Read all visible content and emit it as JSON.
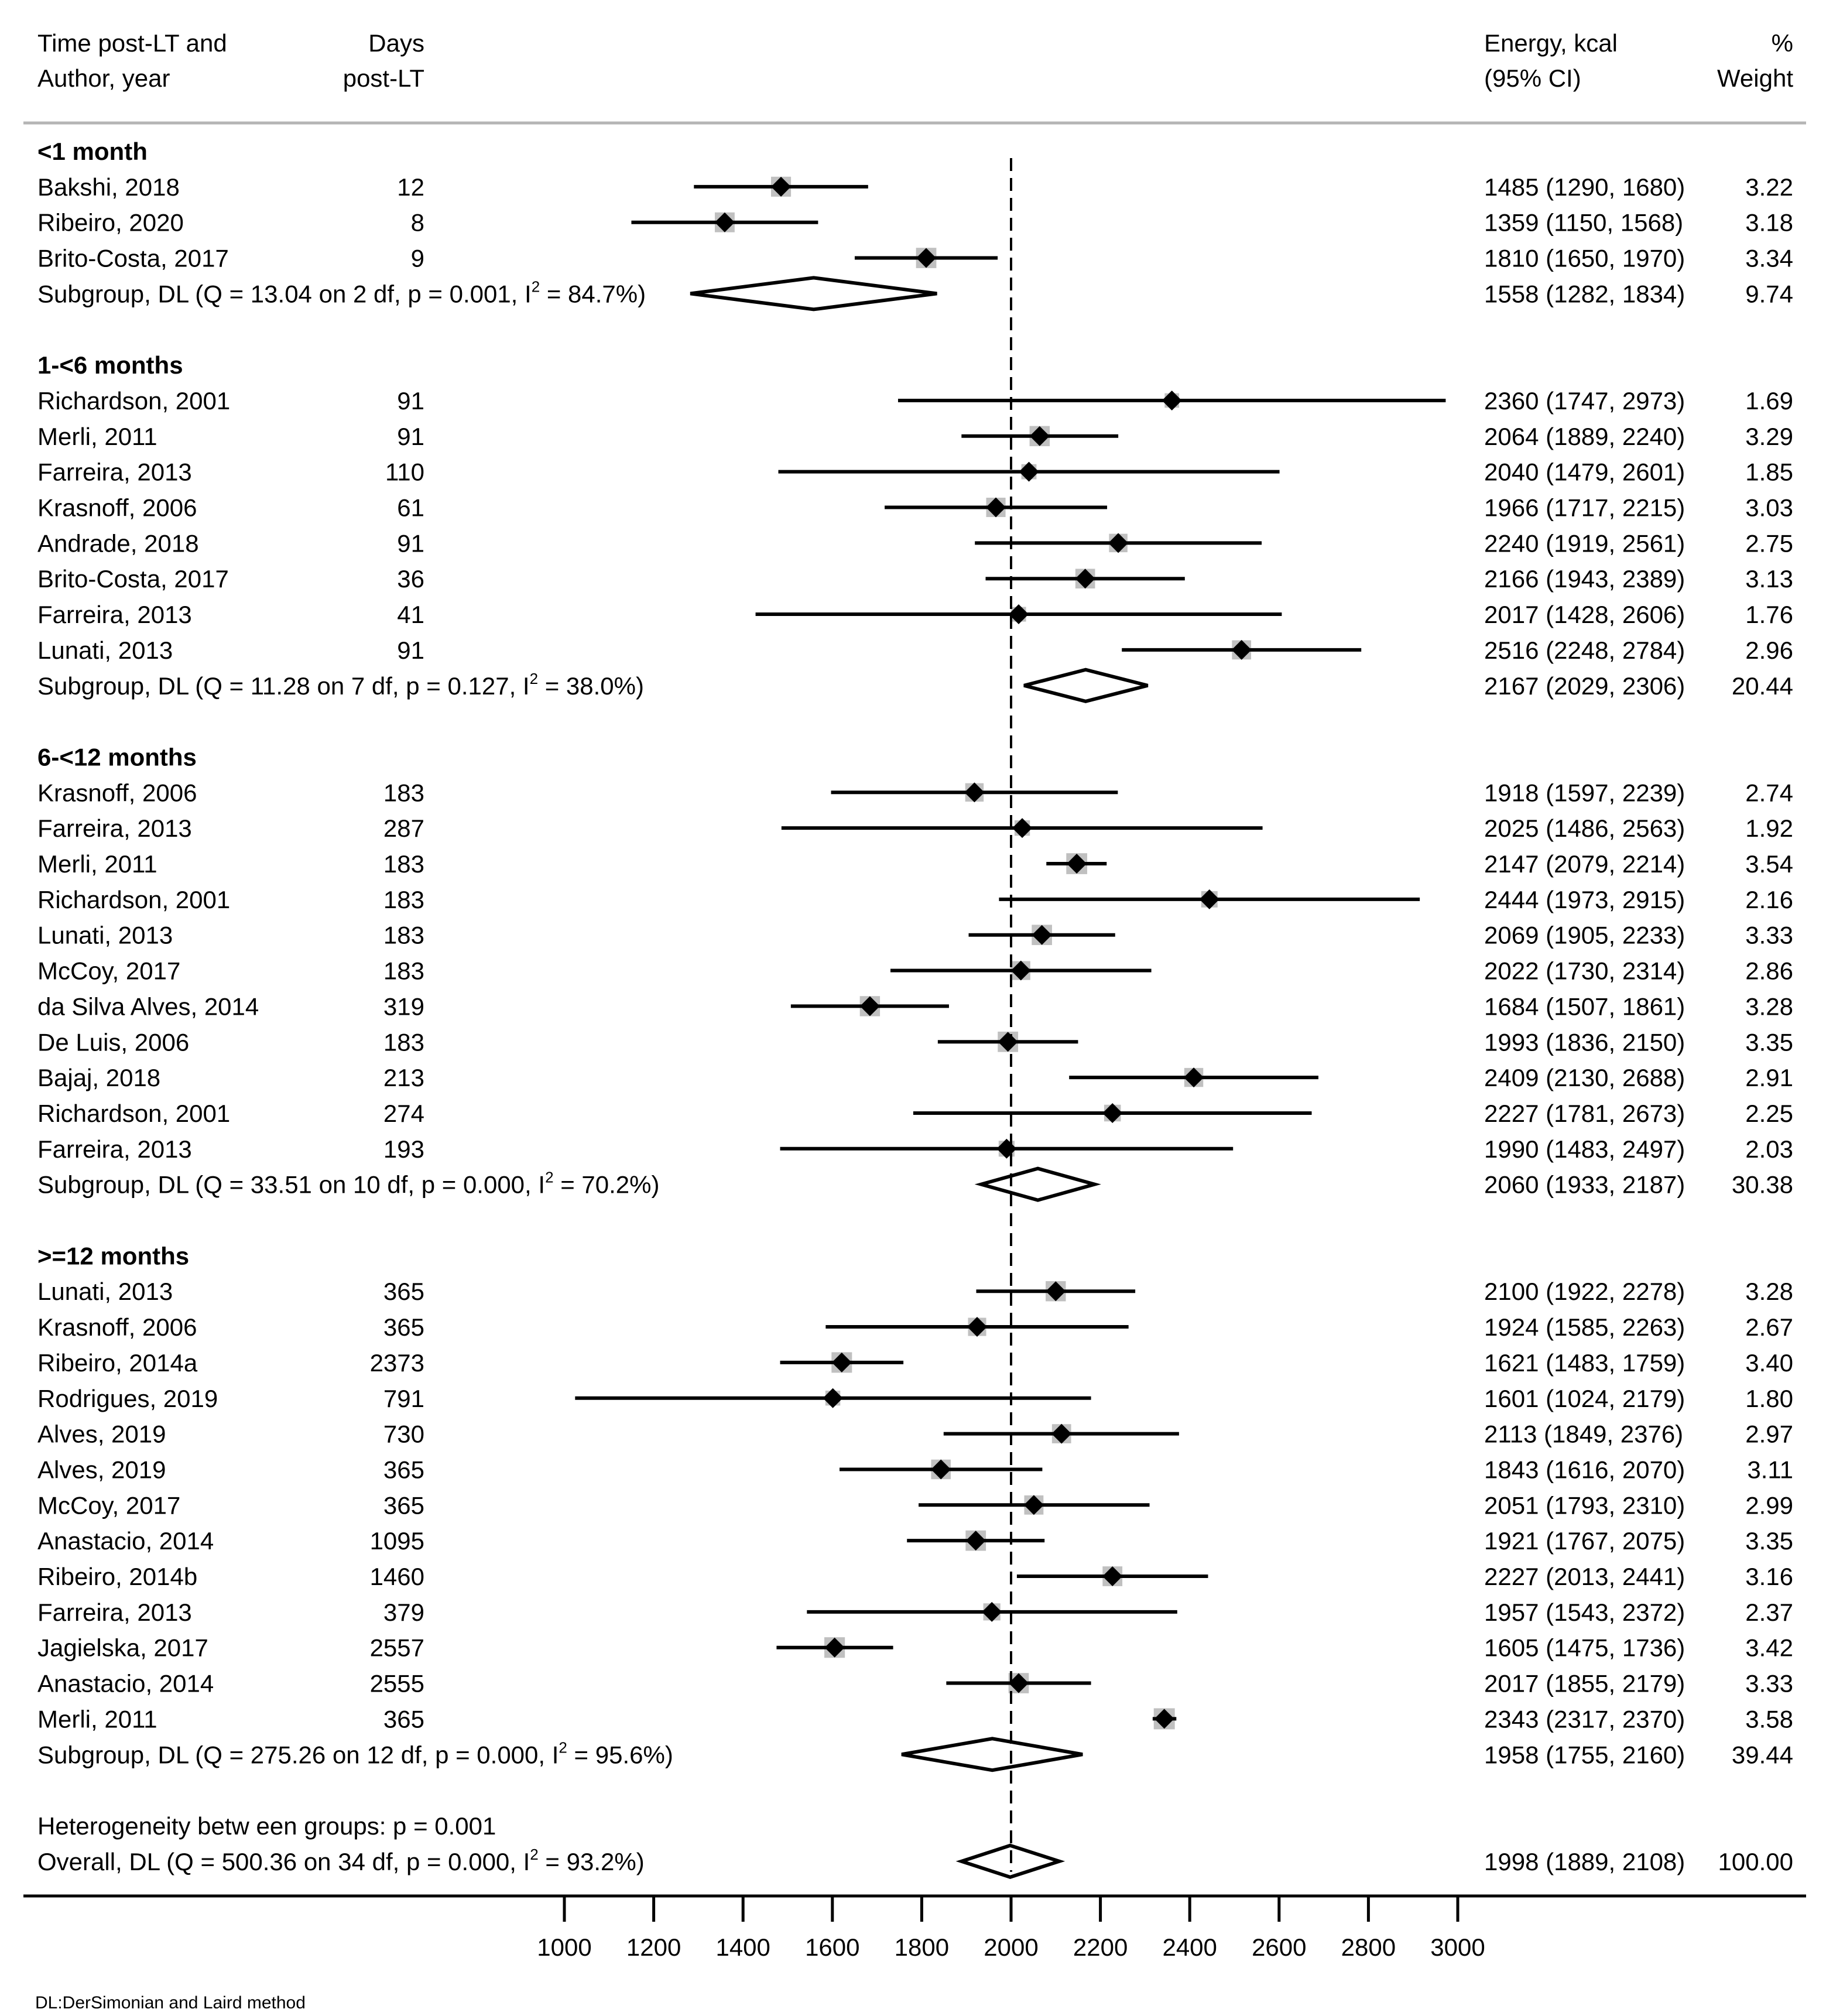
{
  "chart_data": {
    "type": "forest",
    "headers": {
      "study_line1": "Time post-LT and",
      "study_line2": "Author, year",
      "days_line1": "Days",
      "days_line2": "post-LT",
      "energy_line1": "Energy, kcal",
      "energy_line2": "(95% CI)",
      "weight_line1": "%",
      "weight_line2": "Weight"
    },
    "x_axis": {
      "min": 1000,
      "max": 3000,
      "null_line": 2000,
      "ticks": [
        1000,
        1200,
        1400,
        1600,
        1800,
        2000,
        2200,
        2400,
        2600,
        2800,
        3000
      ],
      "tick_labels": [
        "1000",
        "1200",
        "1400",
        "1600",
        "1800",
        "2000",
        "2200",
        "2400",
        "2600",
        "2800",
        "3000"
      ]
    },
    "rows": [
      {
        "kind": "group",
        "label": "<1 month"
      },
      {
        "kind": "study",
        "label": "Bakshi, 2018",
        "days": "12",
        "est": 1485,
        "lo": 1290,
        "hi": 1680,
        "ci_text": "1485 (1290, 1680)",
        "weight": "3.22"
      },
      {
        "kind": "study",
        "label": "Ribeiro, 2020",
        "days": "8",
        "est": 1359,
        "lo": 1150,
        "hi": 1568,
        "ci_text": "1359 (1150, 1568)",
        "weight": "3.18"
      },
      {
        "kind": "study",
        "label": "Brito-Costa, 2017",
        "days": "9",
        "est": 1810,
        "lo": 1650,
        "hi": 1970,
        "ci_text": "1810 (1650, 1970)",
        "weight": "3.34"
      },
      {
        "kind": "subgroup",
        "label_pre": "Subgroup, DL (Q = 13.04 on 2 df, p = 0.001, I",
        "label_sup": "2",
        "label_post": " = 84.7%)",
        "est": 1558,
        "lo": 1282,
        "hi": 1834,
        "ci_text": "1558 (1282, 1834)",
        "weight": "9.74"
      },
      {
        "kind": "blank"
      },
      {
        "kind": "group",
        "label": "1-<6 months"
      },
      {
        "kind": "study",
        "label": "Richardson, 2001",
        "days": "91",
        "est": 2360,
        "lo": 1747,
        "hi": 2973,
        "ci_text": "2360 (1747, 2973)",
        "weight": "1.69"
      },
      {
        "kind": "study",
        "label": "Merli, 2011",
        "days": "91",
        "est": 2064,
        "lo": 1889,
        "hi": 2240,
        "ci_text": "2064 (1889, 2240)",
        "weight": "3.29"
      },
      {
        "kind": "study",
        "label": "Farreira, 2013",
        "days": "110",
        "est": 2040,
        "lo": 1479,
        "hi": 2601,
        "ci_text": "2040 (1479, 2601)",
        "weight": "1.85"
      },
      {
        "kind": "study",
        "label": "Krasnoff, 2006",
        "days": "61",
        "est": 1966,
        "lo": 1717,
        "hi": 2215,
        "ci_text": "1966 (1717, 2215)",
        "weight": "3.03"
      },
      {
        "kind": "study",
        "label": "Andrade, 2018",
        "days": "91",
        "est": 2240,
        "lo": 1919,
        "hi": 2561,
        "ci_text": "2240 (1919, 2561)",
        "weight": "2.75"
      },
      {
        "kind": "study",
        "label": "Brito-Costa, 2017",
        "days": "36",
        "est": 2166,
        "lo": 1943,
        "hi": 2389,
        "ci_text": "2166 (1943, 2389)",
        "weight": "3.13"
      },
      {
        "kind": "study",
        "label": "Farreira, 2013",
        "days": "41",
        "est": 2017,
        "lo": 1428,
        "hi": 2606,
        "ci_text": "2017 (1428, 2606)",
        "weight": "1.76"
      },
      {
        "kind": "study",
        "label": "Lunati, 2013",
        "days": "91",
        "est": 2516,
        "lo": 2248,
        "hi": 2784,
        "ci_text": "2516 (2248, 2784)",
        "weight": "2.96"
      },
      {
        "kind": "subgroup",
        "label_pre": "Subgroup, DL (Q = 11.28 on 7 df, p = 0.127, I",
        "label_sup": "2",
        "label_post": " = 38.0%)",
        "est": 2167,
        "lo": 2029,
        "hi": 2306,
        "ci_text": "2167 (2029, 2306)",
        "weight": "20.44"
      },
      {
        "kind": "blank"
      },
      {
        "kind": "group",
        "label": "6-<12 months"
      },
      {
        "kind": "study",
        "label": "Krasnoff, 2006",
        "days": "183",
        "est": 1918,
        "lo": 1597,
        "hi": 2239,
        "ci_text": "1918 (1597, 2239)",
        "weight": "2.74"
      },
      {
        "kind": "study",
        "label": "Farreira, 2013",
        "days": "287",
        "est": 2025,
        "lo": 1486,
        "hi": 2563,
        "ci_text": "2025 (1486, 2563)",
        "weight": "1.92"
      },
      {
        "kind": "study",
        "label": "Merli, 2011",
        "days": "183",
        "est": 2147,
        "lo": 2079,
        "hi": 2214,
        "ci_text": "2147 (2079, 2214)",
        "weight": "3.54"
      },
      {
        "kind": "study",
        "label": "Richardson, 2001",
        "days": "183",
        "est": 2444,
        "lo": 1973,
        "hi": 2915,
        "ci_text": "2444 (1973, 2915)",
        "weight": "2.16"
      },
      {
        "kind": "study",
        "label": "Lunati, 2013",
        "days": "183",
        "est": 2069,
        "lo": 1905,
        "hi": 2233,
        "ci_text": "2069 (1905, 2233)",
        "weight": "3.33"
      },
      {
        "kind": "study",
        "label": "McCoy, 2017",
        "days": "183",
        "est": 2022,
        "lo": 1730,
        "hi": 2314,
        "ci_text": "2022 (1730, 2314)",
        "weight": "2.86"
      },
      {
        "kind": "study",
        "label": "da Silva Alves, 2014",
        "days": "319",
        "est": 1684,
        "lo": 1507,
        "hi": 1861,
        "ci_text": "1684 (1507, 1861)",
        "weight": "3.28"
      },
      {
        "kind": "study",
        "label": "De Luis, 2006",
        "days": "183",
        "est": 1993,
        "lo": 1836,
        "hi": 2150,
        "ci_text": "1993 (1836, 2150)",
        "weight": "3.35"
      },
      {
        "kind": "study",
        "label": "Bajaj, 2018",
        "days": "213",
        "est": 2409,
        "lo": 2130,
        "hi": 2688,
        "ci_text": "2409 (2130, 2688)",
        "weight": "2.91"
      },
      {
        "kind": "study",
        "label": "Richardson, 2001",
        "days": "274",
        "est": 2227,
        "lo": 1781,
        "hi": 2673,
        "ci_text": "2227 (1781, 2673)",
        "weight": "2.25"
      },
      {
        "kind": "study",
        "label": "Farreira, 2013",
        "days": "193",
        "est": 1990,
        "lo": 1483,
        "hi": 2497,
        "ci_text": "1990 (1483, 2497)",
        "weight": "2.03"
      },
      {
        "kind": "subgroup",
        "label_pre": "Subgroup, DL (Q = 33.51 on 10 df, p = 0.000, I",
        "label_sup": "2",
        "label_post": " = 70.2%)",
        "est": 2060,
        "lo": 1933,
        "hi": 2187,
        "ci_text": "2060 (1933, 2187)",
        "weight": "30.38"
      },
      {
        "kind": "blank"
      },
      {
        "kind": "group",
        "label": ">=12 months"
      },
      {
        "kind": "study",
        "label": "Lunati, 2013",
        "days": "365",
        "est": 2100,
        "lo": 1922,
        "hi": 2278,
        "ci_text": "2100 (1922, 2278)",
        "weight": "3.28"
      },
      {
        "kind": "study",
        "label": "Krasnoff, 2006",
        "days": "365",
        "est": 1924,
        "lo": 1585,
        "hi": 2263,
        "ci_text": "1924 (1585, 2263)",
        "weight": "2.67"
      },
      {
        "kind": "study",
        "label": "Ribeiro, 2014a",
        "days": "2373",
        "est": 1621,
        "lo": 1483,
        "hi": 1759,
        "ci_text": "1621 (1483, 1759)",
        "weight": "3.40"
      },
      {
        "kind": "study",
        "label": "Rodrigues, 2019",
        "days": "791",
        "est": 1601,
        "lo": 1024,
        "hi": 2179,
        "ci_text": "1601 (1024, 2179)",
        "weight": "1.80"
      },
      {
        "kind": "study",
        "label": "Alves, 2019",
        "days": "730",
        "est": 2113,
        "lo": 1849,
        "hi": 2376,
        "ci_text": "2113 (1849, 2376)",
        "weight": "2.97"
      },
      {
        "kind": "study",
        "label": "Alves, 2019",
        "days": "365",
        "est": 1843,
        "lo": 1616,
        "hi": 2070,
        "ci_text": "1843 (1616, 2070)",
        "weight": "3.11"
      },
      {
        "kind": "study",
        "label": "McCoy, 2017",
        "days": "365",
        "est": 2051,
        "lo": 1793,
        "hi": 2310,
        "ci_text": "2051 (1793, 2310)",
        "weight": "2.99"
      },
      {
        "kind": "study",
        "label": "Anastacio, 2014",
        "days": "1095",
        "est": 1921,
        "lo": 1767,
        "hi": 2075,
        "ci_text": "1921 (1767, 2075)",
        "weight": "3.35"
      },
      {
        "kind": "study",
        "label": "Ribeiro, 2014b",
        "days": "1460",
        "est": 2227,
        "lo": 2013,
        "hi": 2441,
        "ci_text": "2227 (2013, 2441)",
        "weight": "3.16"
      },
      {
        "kind": "study",
        "label": "Farreira, 2013",
        "days": "379",
        "est": 1957,
        "lo": 1543,
        "hi": 2372,
        "ci_text": "1957 (1543, 2372)",
        "weight": "2.37"
      },
      {
        "kind": "study",
        "label": "Jagielska, 2017",
        "days": "2557",
        "est": 1605,
        "lo": 1475,
        "hi": 1736,
        "ci_text": "1605 (1475, 1736)",
        "weight": "3.42"
      },
      {
        "kind": "study",
        "label": "Anastacio, 2014",
        "days": "2555",
        "est": 2017,
        "lo": 1855,
        "hi": 2179,
        "ci_text": "2017 (1855, 2179)",
        "weight": "3.33"
      },
      {
        "kind": "study",
        "label": "Merli, 2011",
        "days": "365",
        "est": 2343,
        "lo": 2317,
        "hi": 2370,
        "ci_text": "2343 (2317, 2370)",
        "weight": "3.58"
      },
      {
        "kind": "subgroup",
        "label_pre": "Subgroup, DL (Q = 275.26 on 12 df, p = 0.000, I",
        "label_sup": "2",
        "label_post": " = 95.6%)",
        "est": 1958,
        "lo": 1755,
        "hi": 2160,
        "ci_text": "1958 (1755, 2160)",
        "weight": "39.44"
      },
      {
        "kind": "blank"
      },
      {
        "kind": "note",
        "label": "Heterogeneity betw een groups: p = 0.001"
      },
      {
        "kind": "overall",
        "label_pre": "Overall, DL (Q = 500.36 on 34 df, p = 0.000, I",
        "label_sup": "2",
        "label_post": " = 93.2%)",
        "est": 1998,
        "lo": 1889,
        "hi": 2108,
        "ci_text": "1998 (1889, 2108)",
        "weight": "100.00"
      }
    ],
    "footnote": "DL:DerSimonian and Laird method"
  },
  "colors": {
    "text": "#000000",
    "weight_box": "#c0c0c0",
    "marker": "#000000",
    "rule": "#b5b5b5",
    "axis": "#000000"
  }
}
